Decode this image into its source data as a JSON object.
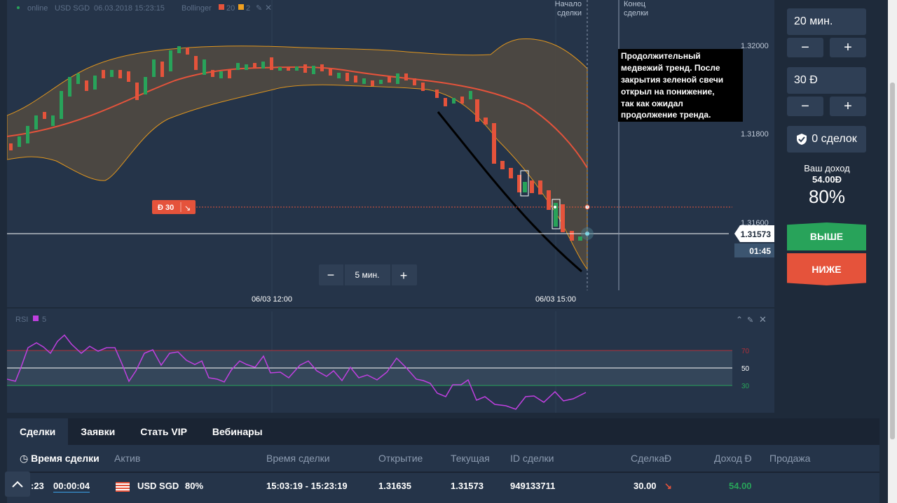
{
  "header": {
    "status": "online",
    "symbol": "USD SGD",
    "datetime": "06.03.2018 15:23:15",
    "indicator": "Bollinger",
    "period_a": "20",
    "period_b": "2"
  },
  "markers": {
    "start": "Начало сделки",
    "start_l1": "Начало",
    "start_l2": "сделки",
    "end_l1": "Конец",
    "end_l2": "сделки"
  },
  "annotation": {
    "lines": [
      "Продолжительный",
      "медвежий тренд. После",
      "закрытия зеленой свечи",
      "открыл на понижение,",
      "так как ожидал",
      "продолжение тренда."
    ]
  },
  "price_axis": {
    "labels": [
      "1.32000",
      "1.31800",
      "1.31600"
    ],
    "current_price": "1.31573",
    "timer": "01:45"
  },
  "time_axis": {
    "labels": [
      "06/03 12:00",
      "06/03 15:00"
    ]
  },
  "timeframe": {
    "value": "5 мин.",
    "minus": "−",
    "plus": "+"
  },
  "trade_tag": {
    "amount": "Ð 30",
    "arrow": "↘"
  },
  "rsi": {
    "label": "RSI",
    "period": "5",
    "levels": [
      "70",
      "50",
      "30"
    ]
  },
  "side": {
    "duration": "20 мин.",
    "amount": "30 Ð",
    "minus": "−",
    "plus": "+",
    "deals": "0 сделок",
    "income_label": "Ваш доход",
    "income_value": "54.00Ð",
    "percent": "80%",
    "up": "ВЫШЕ",
    "down": "НИЖЕ"
  },
  "bottom": {
    "tabs": [
      "Сделки",
      "Заявки",
      "Стать VIP",
      "Вебинары"
    ],
    "headers": [
      "Время сделки",
      "Актив",
      "Время сделки",
      "Открытие",
      "Текущая",
      "ID сделки",
      "СделкаÐ",
      "Доход Ð",
      "Продажа"
    ],
    "row": {
      "time_left": ":23",
      "countdown": "00:00:04",
      "asset": "USD SGD",
      "percent": "80%",
      "range": "15:03:19 - 15:23:19",
      "open": "1.31635",
      "current": "1.31573",
      "id": "949133711",
      "amount": "30.00",
      "arrow": "↘",
      "income": "54.00"
    }
  },
  "colors": {
    "up": "#28a35a",
    "down": "#e5533b",
    "band": "#f0a020",
    "rsi": "#c040e0"
  }
}
